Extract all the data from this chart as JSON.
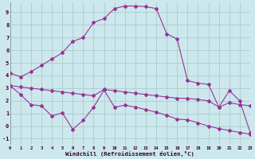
{
  "xlabel": "Windchill (Refroidissement éolien,°C)",
  "background_color": "#cce8ec",
  "grid_color": "#aacccc",
  "line_color": "#993399",
  "xlim": [
    0,
    23
  ],
  "ylim": [
    -1.5,
    9.8
  ],
  "xticks": [
    0,
    1,
    2,
    3,
    4,
    5,
    6,
    7,
    8,
    9,
    10,
    11,
    12,
    13,
    14,
    15,
    16,
    17,
    18,
    19,
    20,
    21,
    22,
    23
  ],
  "yticks": [
    -1,
    0,
    1,
    2,
    3,
    4,
    5,
    6,
    7,
    8,
    9
  ],
  "line1_x": [
    0,
    1,
    2,
    3,
    4,
    5,
    6,
    7,
    8,
    9,
    10,
    11,
    12,
    13,
    14,
    15,
    16,
    17,
    18,
    19,
    20,
    21,
    22,
    23
  ],
  "line1_y": [
    4.2,
    3.9,
    4.3,
    4.8,
    5.3,
    5.8,
    6.7,
    7.0,
    8.2,
    8.5,
    9.3,
    9.5,
    9.5,
    9.45,
    9.3,
    7.3,
    6.9,
    3.6,
    3.4,
    3.3,
    1.5,
    2.8,
    2.0,
    -0.5
  ],
  "line2_x": [
    0,
    1,
    2,
    3,
    4,
    5,
    6,
    7,
    8,
    9,
    10,
    11,
    12,
    13,
    14,
    15,
    16,
    17,
    18,
    19,
    20,
    21,
    22,
    23
  ],
  "line2_y": [
    3.2,
    3.1,
    3.0,
    2.9,
    2.8,
    2.7,
    2.6,
    2.5,
    2.4,
    2.9,
    2.8,
    2.7,
    2.6,
    2.5,
    2.4,
    2.3,
    2.2,
    2.2,
    2.1,
    2.0,
    1.5,
    1.85,
    1.7,
    1.6
  ],
  "line3_x": [
    0,
    1,
    2,
    3,
    4,
    5,
    6,
    7,
    8,
    9,
    10,
    11,
    12,
    13,
    14,
    15,
    16,
    17,
    18,
    19,
    20,
    21,
    22,
    23
  ],
  "line3_y": [
    3.2,
    2.5,
    1.7,
    1.6,
    0.8,
    1.05,
    -0.25,
    0.45,
    1.5,
    2.85,
    1.5,
    1.65,
    1.5,
    1.3,
    1.1,
    0.85,
    0.55,
    0.5,
    0.25,
    0.0,
    -0.2,
    -0.35,
    -0.5,
    -0.65
  ]
}
